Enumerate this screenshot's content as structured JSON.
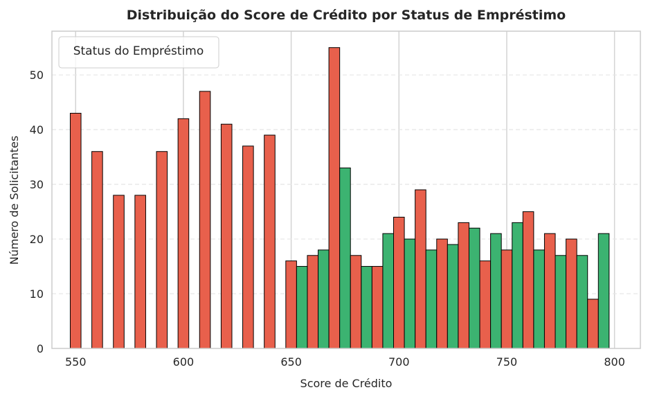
{
  "chart_data": {
    "type": "bar",
    "title": "Distribuição do Score de Crédito por Status de Empréstimo",
    "xlabel": "Score de Crédito",
    "ylabel": "Número de Solicitantes",
    "xlim": [
      539,
      812
    ],
    "ylim": [
      0,
      58
    ],
    "xticks": [
      550,
      600,
      650,
      700,
      750,
      800
    ],
    "yticks": [
      0,
      10,
      20,
      30,
      40,
      50
    ],
    "grid": true,
    "legend": {
      "title": "Status do Empréstimo",
      "position": "top-left",
      "entries": []
    },
    "colors": {
      "red": "#e8604c",
      "green": "#3cb371",
      "edge": "#000000"
    },
    "bar_width": 5,
    "bars": [
      {
        "x": 550,
        "value": 43,
        "color": "red"
      },
      {
        "x": 560,
        "value": 36,
        "color": "red"
      },
      {
        "x": 570,
        "value": 28,
        "color": "red"
      },
      {
        "x": 580,
        "value": 28,
        "color": "red"
      },
      {
        "x": 590,
        "value": 36,
        "color": "red"
      },
      {
        "x": 600,
        "value": 42,
        "color": "red"
      },
      {
        "x": 610,
        "value": 47,
        "color": "red"
      },
      {
        "x": 620,
        "value": 41,
        "color": "red"
      },
      {
        "x": 630,
        "value": 37,
        "color": "red"
      },
      {
        "x": 640,
        "value": 39,
        "color": "red"
      },
      {
        "x": 650,
        "value": 16,
        "color": "red"
      },
      {
        "x": 655,
        "value": 15,
        "color": "green"
      },
      {
        "x": 660,
        "value": 17,
        "color": "red"
      },
      {
        "x": 665,
        "value": 18,
        "color": "green"
      },
      {
        "x": 670,
        "value": 55,
        "color": "red"
      },
      {
        "x": 675,
        "value": 33,
        "color": "green"
      },
      {
        "x": 680,
        "value": 17,
        "color": "red"
      },
      {
        "x": 685,
        "value": 15,
        "color": "green"
      },
      {
        "x": 690,
        "value": 15,
        "color": "red"
      },
      {
        "x": 695,
        "value": 21,
        "color": "green"
      },
      {
        "x": 700,
        "value": 24,
        "color": "red"
      },
      {
        "x": 705,
        "value": 20,
        "color": "green"
      },
      {
        "x": 710,
        "value": 29,
        "color": "red"
      },
      {
        "x": 715,
        "value": 18,
        "color": "green"
      },
      {
        "x": 720,
        "value": 20,
        "color": "red"
      },
      {
        "x": 725,
        "value": 19,
        "color": "green"
      },
      {
        "x": 730,
        "value": 23,
        "color": "red"
      },
      {
        "x": 735,
        "value": 22,
        "color": "green"
      },
      {
        "x": 740,
        "value": 16,
        "color": "red"
      },
      {
        "x": 745,
        "value": 21,
        "color": "green"
      },
      {
        "x": 750,
        "value": 18,
        "color": "red"
      },
      {
        "x": 755,
        "value": 23,
        "color": "green"
      },
      {
        "x": 760,
        "value": 25,
        "color": "red"
      },
      {
        "x": 765,
        "value": 18,
        "color": "green"
      },
      {
        "x": 770,
        "value": 21,
        "color": "red"
      },
      {
        "x": 775,
        "value": 17,
        "color": "green"
      },
      {
        "x": 780,
        "value": 20,
        "color": "red"
      },
      {
        "x": 785,
        "value": 17,
        "color": "green"
      },
      {
        "x": 790,
        "value": 9,
        "color": "red"
      },
      {
        "x": 795,
        "value": 21,
        "color": "green"
      }
    ]
  }
}
